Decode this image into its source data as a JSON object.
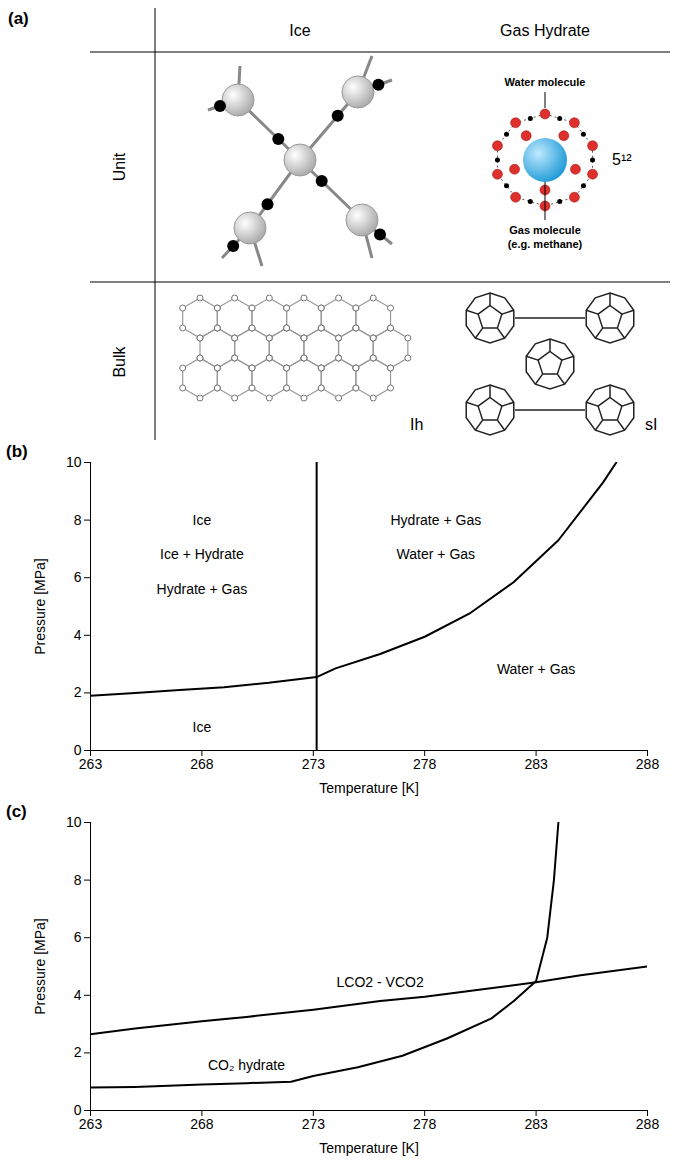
{
  "diagram": {
    "label": "(a)",
    "columns": [
      "Ice",
      "Gas Hydrate"
    ],
    "rows": [
      "Unit",
      "Bulk"
    ],
    "water_molecule": "Water molecule",
    "gas_molecule": [
      "Gas molecule",
      "(e.g. methane)"
    ],
    "cage": "5¹²",
    "bulk_labels": [
      "Ih",
      "sI"
    ]
  },
  "chart_data": [
    {
      "panel": "(b)",
      "type": "line",
      "x_label": "Temperature [K]",
      "y_label": "Pressure [MPa]",
      "xlim": [
        263,
        288
      ],
      "xticks": [
        263,
        268,
        273,
        278,
        283,
        288
      ],
      "ylim": [
        0,
        10
      ],
      "yticks": [
        0,
        2,
        4,
        6,
        8,
        10
      ],
      "grid": false,
      "series": [
        {
          "color": "#000000",
          "x": [
            263,
            265,
            267,
            269,
            271,
            273.15,
            274,
            276,
            278,
            280,
            282,
            284,
            286,
            286.6
          ],
          "values": [
            1.9,
            2.0,
            2.1,
            2.2,
            2.35,
            2.55,
            2.85,
            3.35,
            3.95,
            4.75,
            5.85,
            7.3,
            9.3,
            10.0
          ]
        },
        {
          "color": "#000000",
          "x": [
            273.15,
            273.15
          ],
          "values": [
            0,
            10
          ]
        }
      ],
      "annotations": [
        {
          "text": "Ice",
          "x": 268,
          "y": 8
        },
        {
          "text": "Ice + Hydrate",
          "x": 268,
          "y": 6.8
        },
        {
          "text": "Hydrate + Gas",
          "x": 268,
          "y": 5.6
        },
        {
          "text": "Ice",
          "x": 268,
          "y": 0.8
        },
        {
          "text": "Hydrate + Gas",
          "x": 278.5,
          "y": 8
        },
        {
          "text": "Water + Gas",
          "x": 278.5,
          "y": 6.8
        },
        {
          "text": "Water + Gas",
          "x": 283,
          "y": 2.8
        }
      ]
    },
    {
      "panel": "(c)",
      "type": "line",
      "x_label": "Temperature [K]",
      "y_label": "Pressure [MPa]",
      "xlim": [
        263,
        288
      ],
      "xticks": [
        263,
        268,
        273,
        278,
        283,
        288
      ],
      "ylim": [
        0,
        10
      ],
      "yticks": [
        0,
        2,
        4,
        6,
        8,
        10
      ],
      "grid": false,
      "series": [
        {
          "color": "#000000",
          "x": [
            263,
            265,
            268,
            270,
            272,
            273,
            275,
            277,
            279,
            281,
            282,
            283,
            283.5,
            283.8,
            284
          ],
          "values": [
            0.8,
            0.82,
            0.9,
            0.95,
            1.0,
            1.2,
            1.5,
            1.9,
            2.5,
            3.2,
            3.8,
            4.5,
            6.0,
            8.0,
            10.0
          ]
        },
        {
          "color": "#000000",
          "x": [
            263,
            265,
            268,
            270,
            273,
            276,
            278,
            280,
            283,
            285,
            288
          ],
          "values": [
            2.65,
            2.85,
            3.1,
            3.25,
            3.5,
            3.8,
            3.95,
            4.15,
            4.45,
            4.7,
            5.0
          ]
        }
      ],
      "annotations": [
        {
          "text": "LCO2 - VCO2",
          "x": 276,
          "y": 4.45
        },
        {
          "text": "CO₂ hydrate",
          "x": 270,
          "y": 1.55
        }
      ]
    }
  ]
}
